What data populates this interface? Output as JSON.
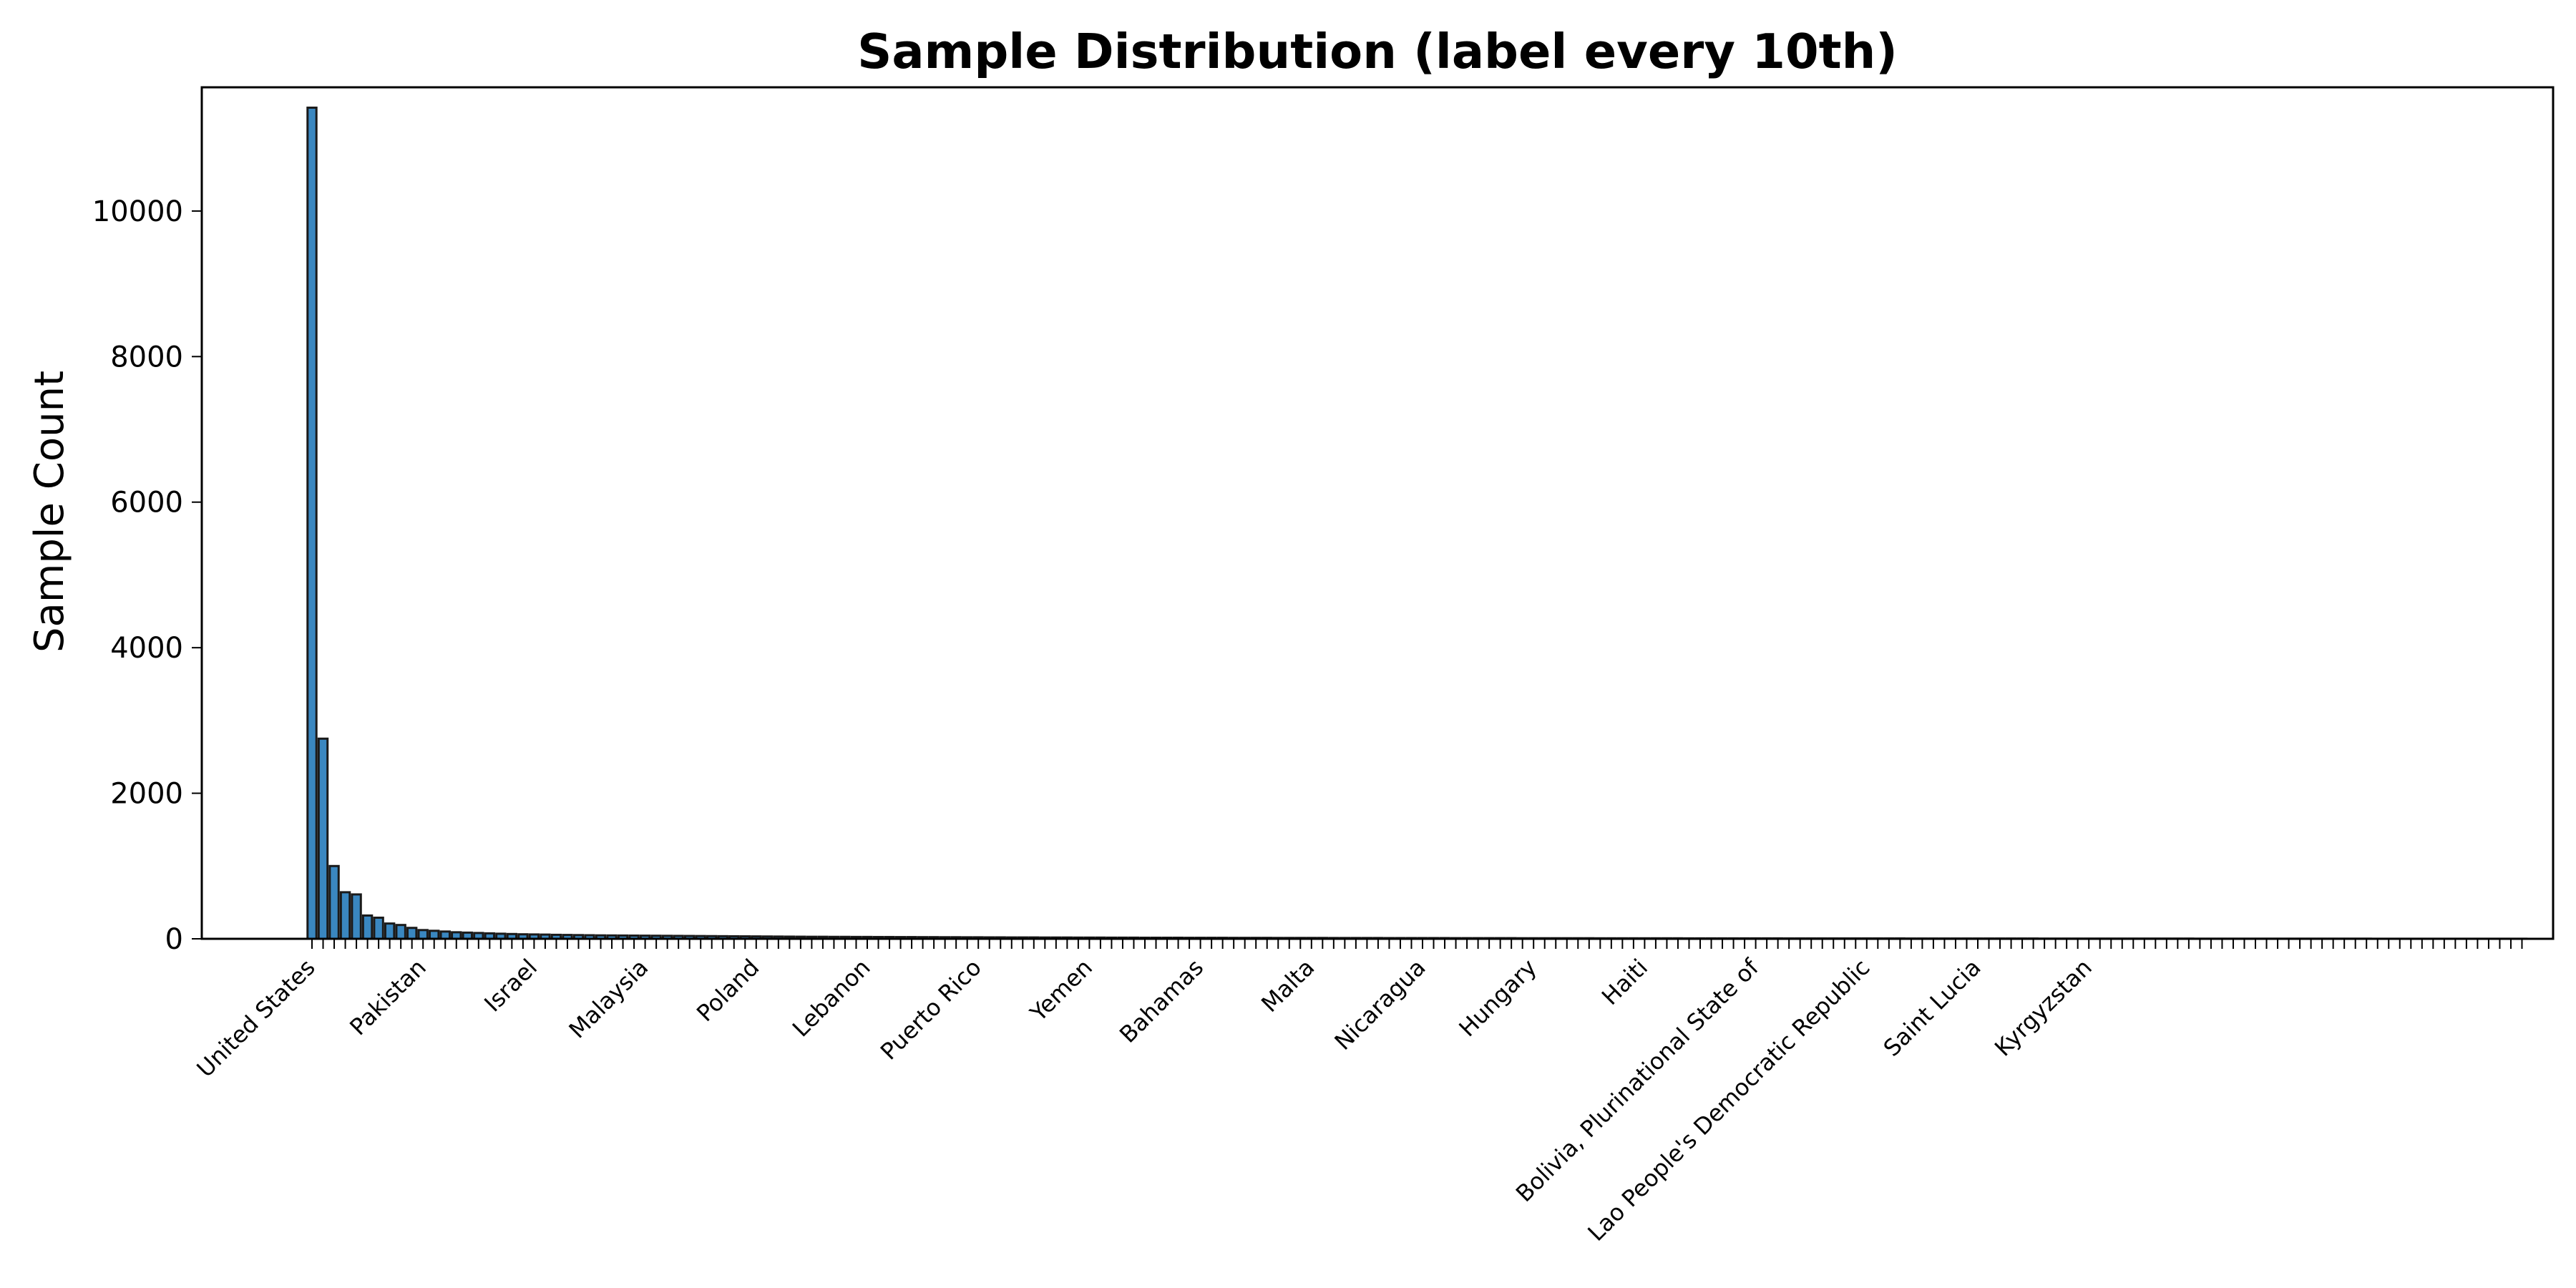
{
  "chart_data": {
    "type": "bar",
    "title": "Sample Distribution (label every 10th)",
    "xlabel": "",
    "ylabel": "Sample Count",
    "ylim": [
      0,
      11700
    ],
    "yticks": [
      0,
      2000,
      4000,
      6000,
      8000,
      10000
    ],
    "grid": false,
    "bar_color": "#3a87c0",
    "bar_edge_color": "#1a1a1a",
    "category_count": 200,
    "label_every": 10,
    "categories": [
      "United States",
      "",
      "",
      "",
      "",
      "",
      "",
      "",
      "",
      "",
      "Pakistan",
      "",
      "",
      "",
      "",
      "",
      "",
      "",
      "",
      "",
      "Israel",
      "",
      "",
      "",
      "",
      "",
      "",
      "",
      "",
      "",
      "Malaysia",
      "",
      "",
      "",
      "",
      "",
      "",
      "",
      "",
      "",
      "Poland",
      "",
      "",
      "",
      "",
      "",
      "",
      "",
      "",
      "",
      "Lebanon",
      "",
      "",
      "",
      "",
      "",
      "",
      "",
      "",
      "",
      "Puerto Rico",
      "",
      "",
      "",
      "",
      "",
      "",
      "",
      "",
      "",
      "Yemen",
      "",
      "",
      "",
      "",
      "",
      "",
      "",
      "",
      "",
      "Bahamas",
      "",
      "",
      "",
      "",
      "",
      "",
      "",
      "",
      "",
      "Malta",
      "",
      "",
      "",
      "",
      "",
      "",
      "",
      "",
      "",
      "Nicaragua",
      "",
      "",
      "",
      "",
      "",
      "",
      "",
      "",
      "",
      "Hungary",
      "",
      "",
      "",
      "",
      "",
      "",
      "",
      "",
      "",
      "Haiti",
      "",
      "",
      "",
      "",
      "",
      "",
      "",
      "",
      "",
      "Bolivia, Plurinational State of",
      "",
      "",
      "",
      "",
      "",
      "",
      "",
      "",
      "",
      "Lao People's Democratic Republic",
      "",
      "",
      "",
      "",
      "",
      "",
      "",
      "",
      "",
      "Saint Lucia",
      "",
      "",
      "",
      "",
      "",
      "",
      "",
      "",
      "",
      "Kyrgyzstan",
      "",
      "",
      "",
      "",
      "",
      "",
      "",
      "",
      "",
      "",
      "",
      "",
      "",
      "",
      "",
      "",
      "",
      "",
      "",
      "",
      "",
      "",
      "",
      "",
      "",
      "",
      "",
      "",
      "",
      "",
      "",
      "",
      "",
      "",
      "",
      "",
      "",
      "",
      ""
    ],
    "values": [
      11420,
      2750,
      1000,
      640,
      610,
      320,
      290,
      210,
      190,
      150,
      120,
      110,
      100,
      90,
      85,
      80,
      75,
      70,
      66,
      62,
      60,
      58,
      55,
      53,
      51,
      49,
      47,
      46,
      45,
      44,
      43,
      42,
      41,
      40,
      39,
      38,
      37,
      36,
      35,
      34,
      33,
      32,
      31,
      30,
      29,
      28,
      28,
      27,
      27,
      26,
      26,
      25,
      25,
      24,
      24,
      23,
      23,
      22,
      22,
      21,
      21,
      20,
      20,
      19,
      19,
      19,
      18,
      18,
      18,
      17,
      17,
      17,
      16,
      16,
      16,
      15,
      15,
      15,
      15,
      14,
      14,
      14,
      14,
      13,
      13,
      13,
      13,
      12,
      12,
      12,
      12,
      12,
      11,
      11,
      11,
      11,
      11,
      10,
      10,
      10,
      10,
      10,
      10,
      9,
      9,
      9,
      9,
      9,
      9,
      8,
      8,
      8,
      8,
      8,
      8,
      8,
      7,
      7,
      7,
      7,
      7,
      7,
      7,
      7,
      6,
      6,
      6,
      6,
      6,
      6,
      6,
      6,
      6,
      5,
      5,
      5,
      5,
      5,
      5,
      5,
      5,
      5,
      5,
      5,
      4,
      4,
      4,
      4,
      4,
      4,
      4,
      4,
      4,
      4,
      4,
      4,
      3,
      3,
      3,
      3,
      3,
      3,
      3,
      3,
      3,
      3,
      3,
      3,
      3,
      3,
      2,
      2,
      2,
      2,
      2,
      2,
      2,
      2,
      2,
      2,
      2,
      2,
      2,
      2,
      2,
      2,
      1,
      1,
      1,
      1,
      1,
      1,
      1,
      1,
      1,
      1,
      1,
      1,
      1,
      1
    ]
  }
}
